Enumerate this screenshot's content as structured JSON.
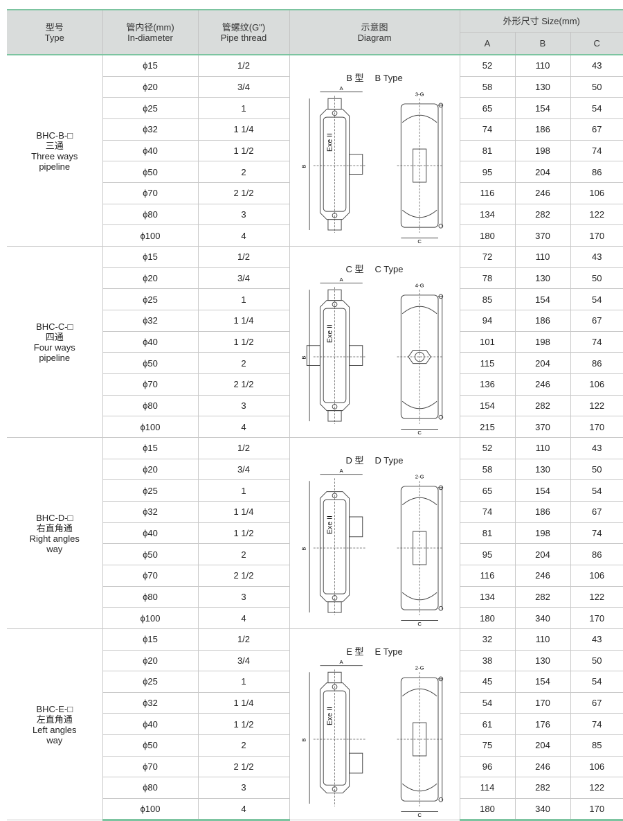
{
  "header": {
    "type": {
      "zh": "型号",
      "en": "Type"
    },
    "diameter": {
      "zh": "管内径(mm)",
      "en": "In-diameter"
    },
    "thread": {
      "zh": "管螺纹(G\")",
      "en": "Pipe thread"
    },
    "diagram": {
      "zh": "示意图",
      "en": "Diagram"
    },
    "size": "外形尺寸  Size(mm)",
    "cols": [
      "A",
      "B",
      "C"
    ]
  },
  "groups": [
    {
      "model": "BHC-B-□",
      "zh": "三通",
      "en1": "Three ways",
      "en2": "pipeline",
      "diagram": {
        "zh": "B 型",
        "en": "B Type",
        "variant": "B",
        "g_label": "3-G",
        "mark": "Exe II",
        "dims": [
          "A",
          "B",
          "C"
        ]
      },
      "rows": [
        [
          "ϕ15",
          "1/2",
          "52",
          "110",
          "43"
        ],
        [
          "ϕ20",
          "3/4",
          "58",
          "130",
          "50"
        ],
        [
          "ϕ25",
          "1",
          "65",
          "154",
          "54"
        ],
        [
          "ϕ32",
          "1 1/4",
          "74",
          "186",
          "67"
        ],
        [
          "ϕ40",
          "1 1/2",
          "81",
          "198",
          "74"
        ],
        [
          "ϕ50",
          "2",
          "95",
          "204",
          "86"
        ],
        [
          "ϕ70",
          "2 1/2",
          "116",
          "246",
          "106"
        ],
        [
          "ϕ80",
          "3",
          "134",
          "282",
          "122"
        ],
        [
          "ϕ100",
          "4",
          "180",
          "370",
          "170"
        ]
      ]
    },
    {
      "model": "BHC-C-□",
      "zh": "四通",
      "en1": "Four ways",
      "en2": "pipeline",
      "diagram": {
        "zh": "C 型",
        "en": "C Type",
        "variant": "C",
        "g_label": "4-G",
        "mark": "Exe II",
        "dims": [
          "A",
          "B",
          "C"
        ]
      },
      "rows": [
        [
          "ϕ15",
          "1/2",
          "72",
          "110",
          "43"
        ],
        [
          "ϕ20",
          "3/4",
          "78",
          "130",
          "50"
        ],
        [
          "ϕ25",
          "1",
          "85",
          "154",
          "54"
        ],
        [
          "ϕ32",
          "1 1/4",
          "94",
          "186",
          "67"
        ],
        [
          "ϕ40",
          "1 1/2",
          "101",
          "198",
          "74"
        ],
        [
          "ϕ50",
          "2",
          "115",
          "204",
          "86"
        ],
        [
          "ϕ70",
          "2 1/2",
          "136",
          "246",
          "106"
        ],
        [
          "ϕ80",
          "3",
          "154",
          "282",
          "122"
        ],
        [
          "ϕ100",
          "4",
          "215",
          "370",
          "170"
        ]
      ]
    },
    {
      "model": "BHC-D-□",
      "zh": "右直角通",
      "en1": "Right angles",
      "en2": "way",
      "diagram": {
        "zh": "D 型",
        "en": "D Type",
        "variant": "D",
        "g_label": "2-G",
        "mark": "Exe II",
        "dims": [
          "A",
          "B",
          "C"
        ]
      },
      "rows": [
        [
          "ϕ15",
          "1/2",
          "52",
          "110",
          "43"
        ],
        [
          "ϕ20",
          "3/4",
          "58",
          "130",
          "50"
        ],
        [
          "ϕ25",
          "1",
          "65",
          "154",
          "54"
        ],
        [
          "ϕ32",
          "1 1/4",
          "74",
          "186",
          "67"
        ],
        [
          "ϕ40",
          "1 1/2",
          "81",
          "198",
          "74"
        ],
        [
          "ϕ50",
          "2",
          "95",
          "204",
          "86"
        ],
        [
          "ϕ70",
          "2 1/2",
          "116",
          "246",
          "106"
        ],
        [
          "ϕ80",
          "3",
          "134",
          "282",
          "122"
        ],
        [
          "ϕ100",
          "4",
          "180",
          "340",
          "170"
        ]
      ]
    },
    {
      "model": "BHC-E-□",
      "zh": "左直角通",
      "en1": "Left angles",
      "en2": "way",
      "diagram": {
        "zh": "E 型",
        "en": "E Type",
        "variant": "E",
        "g_label": "2-G",
        "mark": "Exe II",
        "dims": [
          "A",
          "B",
          "C"
        ]
      },
      "rows": [
        [
          "ϕ15",
          "1/2",
          "32",
          "110",
          "43"
        ],
        [
          "ϕ20",
          "3/4",
          "38",
          "130",
          "50"
        ],
        [
          "ϕ25",
          "1",
          "45",
          "154",
          "54"
        ],
        [
          "ϕ32",
          "1 1/4",
          "54",
          "170",
          "67"
        ],
        [
          "ϕ40",
          "1 1/2",
          "61",
          "176",
          "74"
        ],
        [
          "ϕ50",
          "2",
          "75",
          "204",
          "85"
        ],
        [
          "ϕ70",
          "2 1/2",
          "96",
          "246",
          "106"
        ],
        [
          "ϕ80",
          "3",
          "114",
          "282",
          "122"
        ],
        [
          "ϕ100",
          "4",
          "180",
          "340",
          "170"
        ]
      ]
    }
  ],
  "colors": {
    "header_bg": "#d9dcdb",
    "accent_line": "#7cc4a0",
    "grid": "#c9c9c9"
  }
}
